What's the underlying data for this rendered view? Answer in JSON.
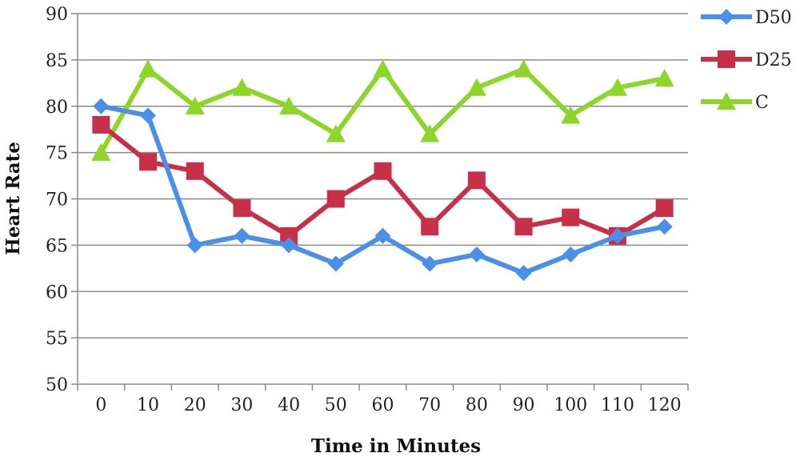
{
  "chart_data": {
    "type": "line",
    "xlabel": "Time in Minutes",
    "ylabel": "Heart Rate",
    "categories": [
      "0",
      "10",
      "20",
      "30",
      "40",
      "50",
      "60",
      "70",
      "80",
      "90",
      "100",
      "110",
      "120"
    ],
    "ylim": [
      50,
      90
    ],
    "yticks": [
      "50",
      "55",
      "60",
      "65",
      "70",
      "75",
      "80",
      "85",
      "90"
    ],
    "grid": true,
    "legend_position": "right",
    "series": [
      {
        "name": "D50",
        "color": "#4a8fe8",
        "marker": "diamond",
        "values": [
          80,
          79,
          65,
          66,
          65,
          63,
          66,
          63,
          64,
          62,
          64,
          66,
          67
        ]
      },
      {
        "name": "D25",
        "color": "#c8304a",
        "marker": "square",
        "values": [
          78,
          74,
          73,
          69,
          66,
          70,
          73,
          67,
          72,
          67,
          68,
          66,
          69
        ]
      },
      {
        "name": "C",
        "color": "#8cd629",
        "marker": "triangle",
        "values": [
          75,
          84,
          80,
          82,
          80,
          77,
          84,
          77,
          82,
          84,
          79,
          82,
          83
        ]
      }
    ]
  }
}
